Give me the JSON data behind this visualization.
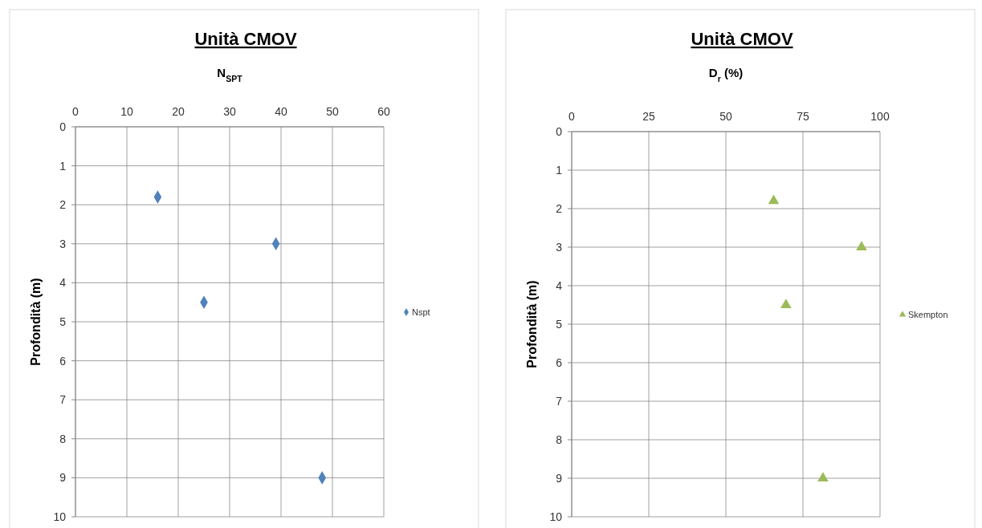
{
  "chart_data": [
    {
      "type": "scatter",
      "title": "Unità CMOV",
      "xlabel": "N$_{SPT}$",
      "ylabel": "Profondità (m)",
      "xlim": [
        0,
        60
      ],
      "xticks": [
        0,
        10,
        20,
        30,
        40,
        50,
        60
      ],
      "ylim": [
        10,
        0
      ],
      "yticks": [
        0,
        1,
        2,
        3,
        4,
        5,
        6,
        7,
        8,
        9,
        10
      ],
      "grid": true,
      "legend": "right",
      "marker": "diamond",
      "series": [
        {
          "name": "Nspt",
          "color": "#4f81bd",
          "x": [
            16,
            39,
            25,
            48
          ],
          "values": [
            1.8,
            3,
            4.5,
            9
          ]
        }
      ]
    },
    {
      "type": "scatter",
      "title": "Unità CMOV",
      "xlabel": "D$_{r}$ (%)",
      "ylabel": "Profondità (m)",
      "xlim": [
        0,
        100
      ],
      "xticks": [
        0,
        25,
        50,
        75,
        100
      ],
      "ylim": [
        10,
        0
      ],
      "yticks": [
        0,
        1,
        2,
        3,
        4,
        5,
        6,
        7,
        8,
        9,
        10
      ],
      "grid": true,
      "legend": "right",
      "marker": "triangle",
      "series": [
        {
          "name": "Skempton",
          "color": "#9bbb59",
          "x": [
            65.5,
            94,
            69.5,
            81.5
          ],
          "values": [
            1.8,
            3,
            4.5,
            9
          ]
        }
      ]
    }
  ]
}
